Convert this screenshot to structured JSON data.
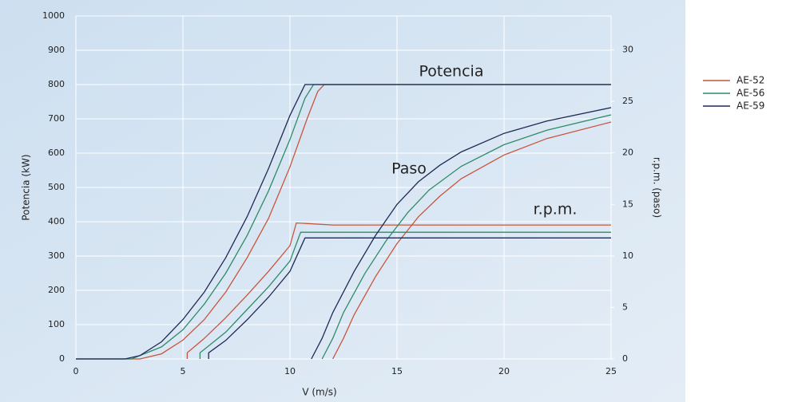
{
  "chart_data": {
    "type": "line",
    "xlabel": "V (m/s)",
    "ylabel": "Potencia (kW)",
    "y2label": "r.p.m. (paso)",
    "annotations": [
      "Potencia",
      "Paso",
      "r.p.m."
    ],
    "xlim": [
      0,
      25
    ],
    "xticks": [
      0,
      5,
      10,
      15,
      20,
      25
    ],
    "ylim": [
      0,
      1000
    ],
    "yticks": [
      0,
      100,
      200,
      300,
      400,
      500,
      600,
      700,
      800,
      900,
      1000
    ],
    "y2lim": [
      0,
      33.3
    ],
    "y2ticks": [
      0,
      5,
      10,
      15,
      20,
      25,
      30
    ],
    "grid": true,
    "legend": "right",
    "series": [
      {
        "name": "AE-52",
        "color": "#c8553d",
        "power_x": [
          0,
          3,
          4,
          5,
          6,
          7,
          8,
          9,
          10,
          10.8,
          11.3,
          11.6,
          25
        ],
        "power": [
          0,
          0,
          15,
          55,
          115,
          195,
          295,
          410,
          560,
          700,
          780,
          800,
          800
        ],
        "rpm_x": [
          5.2,
          5.2,
          6,
          7,
          8,
          9,
          10,
          10.3,
          12,
          25
        ],
        "rpm": [
          0,
          0.6,
          2,
          4,
          6.2,
          8.5,
          11,
          13.2,
          13,
          13
        ],
        "pitch_x": [
          12,
          12.5,
          13,
          14,
          15,
          16,
          17,
          18,
          20,
          22,
          25
        ],
        "pitch": [
          0,
          2,
          4.3,
          8,
          11.2,
          13.8,
          15.8,
          17.5,
          19.8,
          21.4,
          23
        ]
      },
      {
        "name": "AE-56",
        "color": "#2e8b6a",
        "power_x": [
          0,
          2.6,
          4,
          5,
          6,
          7,
          8,
          9,
          10,
          10.7,
          11.1,
          25
        ],
        "power": [
          0,
          0,
          35,
          85,
          160,
          250,
          360,
          490,
          640,
          760,
          800,
          800
        ],
        "rpm_x": [
          5.8,
          5.8,
          7,
          8,
          9,
          10,
          10.5,
          25
        ],
        "rpm": [
          0,
          0.6,
          2.6,
          4.8,
          7,
          9.5,
          12.3,
          12.3
        ],
        "pitch_x": [
          11.5,
          12,
          12.5,
          13.5,
          14.5,
          15.5,
          16.5,
          18,
          20,
          22,
          25
        ],
        "pitch": [
          0,
          2,
          4.5,
          8.3,
          11.5,
          14.2,
          16.4,
          18.7,
          20.8,
          22.2,
          23.7
        ]
      },
      {
        "name": "AE-59",
        "color": "#1f2a55",
        "power_x": [
          0,
          2.3,
          3,
          4,
          5,
          6,
          7,
          8,
          9,
          10,
          10.7,
          25
        ],
        "power": [
          0,
          0,
          10,
          50,
          115,
          195,
          295,
          415,
          555,
          710,
          800,
          800
        ],
        "rpm_x": [
          6.2,
          6.2,
          7,
          8,
          9,
          10,
          10.7,
          25
        ],
        "rpm": [
          0,
          0.6,
          1.8,
          3.8,
          6,
          8.5,
          11.75,
          11.75
        ],
        "pitch_x": [
          11,
          11.5,
          12,
          13,
          14,
          15,
          16,
          17,
          18,
          20,
          22,
          25
        ],
        "pitch": [
          0,
          2,
          4.5,
          8.5,
          12,
          15,
          17.2,
          18.8,
          20.1,
          21.9,
          23.1,
          24.4
        ]
      }
    ]
  }
}
